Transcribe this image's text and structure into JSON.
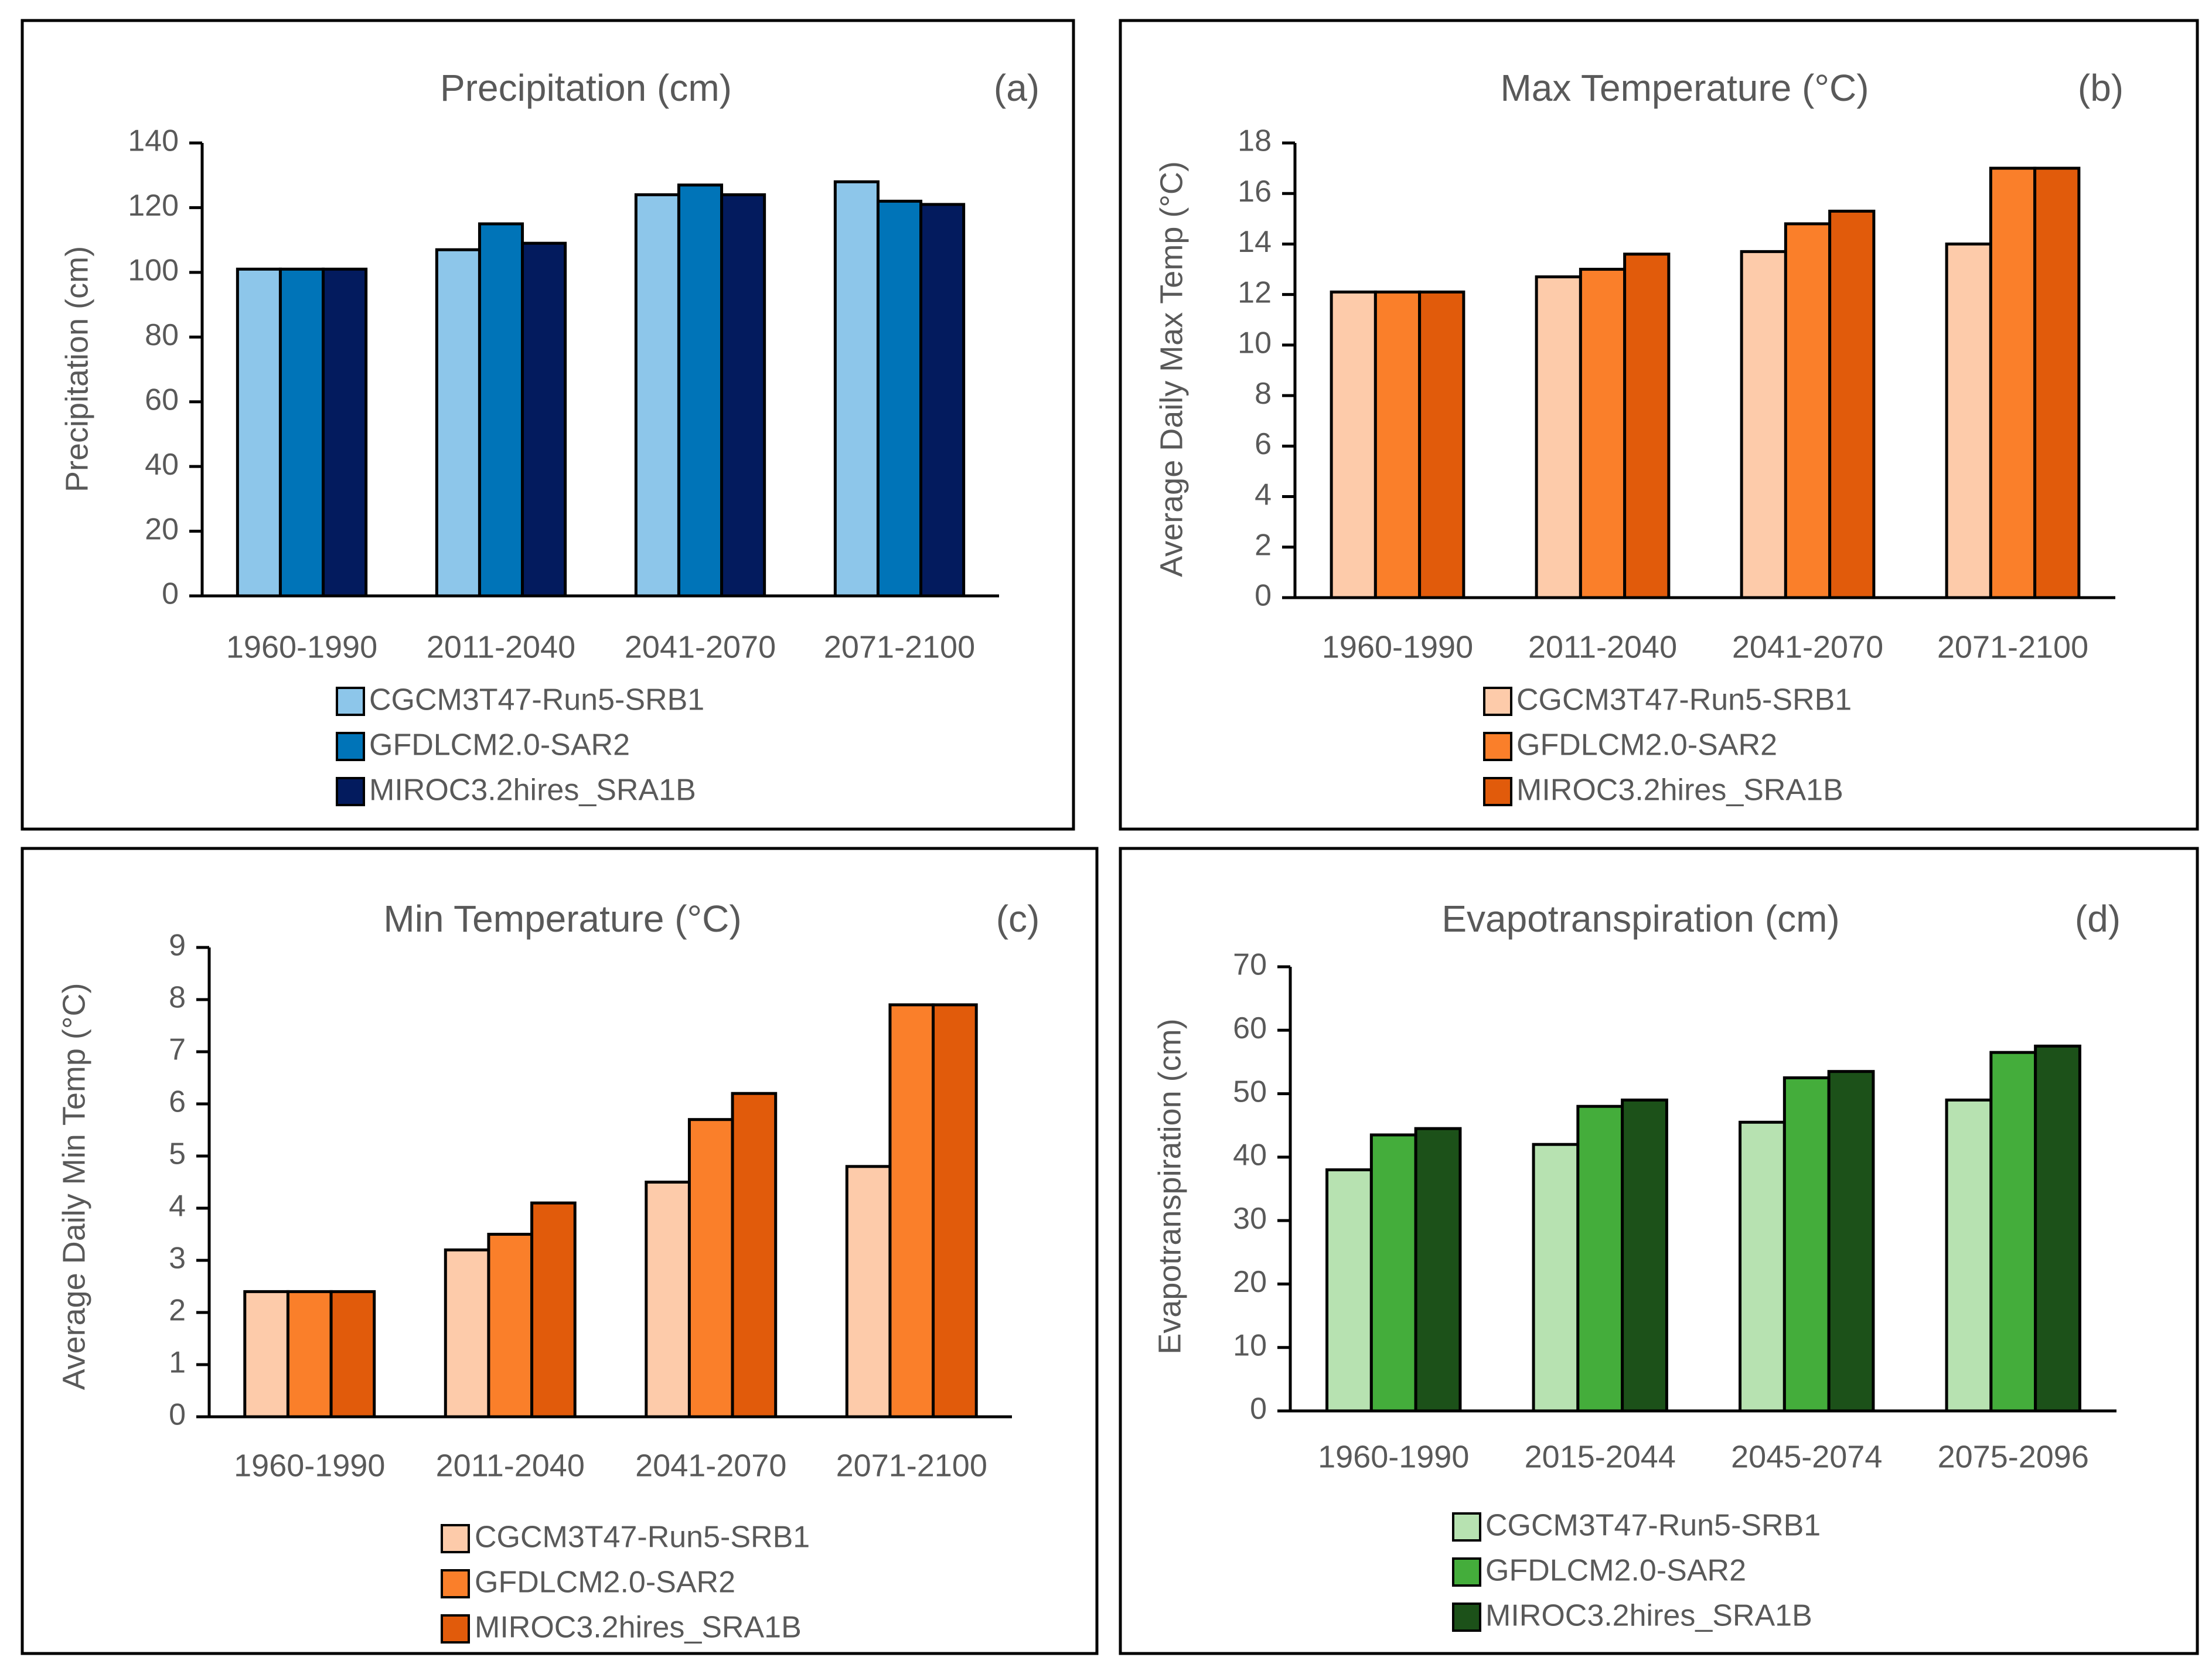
{
  "chart_data": [
    {
      "type": "bar",
      "title": "Precipitation (cm)",
      "panel_label": "(a)",
      "xlabel": "",
      "ylabel": "Precipitation (cm)",
      "ylim": [
        0,
        140
      ],
      "yticks": [
        0,
        20,
        40,
        60,
        80,
        100,
        120,
        140
      ],
      "grid": false,
      "legend_position": "bottom",
      "categories": [
        "1960-1990",
        "2011-2040",
        "2041-2070",
        "2071-2100"
      ],
      "series": [
        {
          "name": "CGCM3T47-Run5-SRB1",
          "color": "#8dc6ea",
          "values": [
            101,
            107,
            124,
            128
          ]
        },
        {
          "name": "GFDLCM2.0-SAR2",
          "color": "#0074b8",
          "values": [
            101,
            115,
            127,
            122
          ]
        },
        {
          "name": "MIROC3.2hires_SRA1B",
          "color": "#031b5e",
          "values": [
            101,
            109,
            124,
            121
          ]
        }
      ]
    },
    {
      "type": "bar",
      "title": "Max Temperature (°C)",
      "panel_label": "(b)",
      "xlabel": "",
      "ylabel": "Average Daily Max Temp (°C)",
      "ylim": [
        0,
        18
      ],
      "yticks": [
        0,
        2,
        4,
        6,
        8,
        10,
        12,
        14,
        16,
        18
      ],
      "grid": false,
      "legend_position": "bottom",
      "categories": [
        "1960-1990",
        "2011-2040",
        "2041-2070",
        "2071-2100"
      ],
      "series": [
        {
          "name": "CGCM3T47-Run5-SRB1",
          "color": "#fdcbaa",
          "values": [
            12.1,
            12.7,
            13.7,
            14.0
          ]
        },
        {
          "name": "GFDLCM2.0-SAR2",
          "color": "#fa7f2a",
          "values": [
            12.1,
            13.0,
            14.8,
            17.0
          ]
        },
        {
          "name": "MIROC3.2hires_SRA1B",
          "color": "#e15b0b",
          "values": [
            12.1,
            13.6,
            15.3,
            17.0
          ]
        }
      ]
    },
    {
      "type": "bar",
      "title": "Min Temperature (°C)",
      "panel_label": "(c)",
      "xlabel": "",
      "ylabel": "Average Daily Min Temp (°C)",
      "ylim": [
        0,
        9
      ],
      "yticks": [
        0,
        1,
        2,
        3,
        4,
        5,
        6,
        7,
        8,
        9
      ],
      "grid": false,
      "legend_position": "bottom",
      "categories": [
        "1960-1990",
        "2011-2040",
        "2041-2070",
        "2071-2100"
      ],
      "series": [
        {
          "name": "CGCM3T47-Run5-SRB1",
          "color": "#fdcbaa",
          "values": [
            2.4,
            3.2,
            4.5,
            4.8
          ]
        },
        {
          "name": "GFDLCM2.0-SAR2",
          "color": "#fa7f2a",
          "values": [
            2.4,
            3.5,
            5.7,
            7.9
          ]
        },
        {
          "name": "MIROC3.2hires_SRA1B",
          "color": "#e15b0b",
          "values": [
            2.4,
            4.1,
            6.2,
            7.9
          ]
        }
      ]
    },
    {
      "type": "bar",
      "title": "Evapotranspiration (cm)",
      "panel_label": "(d)",
      "xlabel": "",
      "ylabel": "Evapotranspiration (cm)",
      "ylim": [
        0,
        70
      ],
      "yticks": [
        0,
        10,
        20,
        30,
        40,
        50,
        60,
        70
      ],
      "grid": false,
      "legend_position": "bottom",
      "categories": [
        "1960-1990",
        "2015-2044",
        "2045-2074",
        "2075-2096"
      ],
      "series": [
        {
          "name": "CGCM3T47-Run5-SRB1",
          "color": "#b7e2b1",
          "values": [
            38,
            42,
            45.5,
            49
          ]
        },
        {
          "name": "GFDLCM2.0-SAR2",
          "color": "#44ad3b",
          "values": [
            43.5,
            48,
            52.5,
            56.5
          ]
        },
        {
          "name": "MIROC3.2hires_SRA1B",
          "color": "#1c5119",
          "values": [
            44.5,
            49,
            53.5,
            57.5
          ]
        }
      ]
    }
  ]
}
